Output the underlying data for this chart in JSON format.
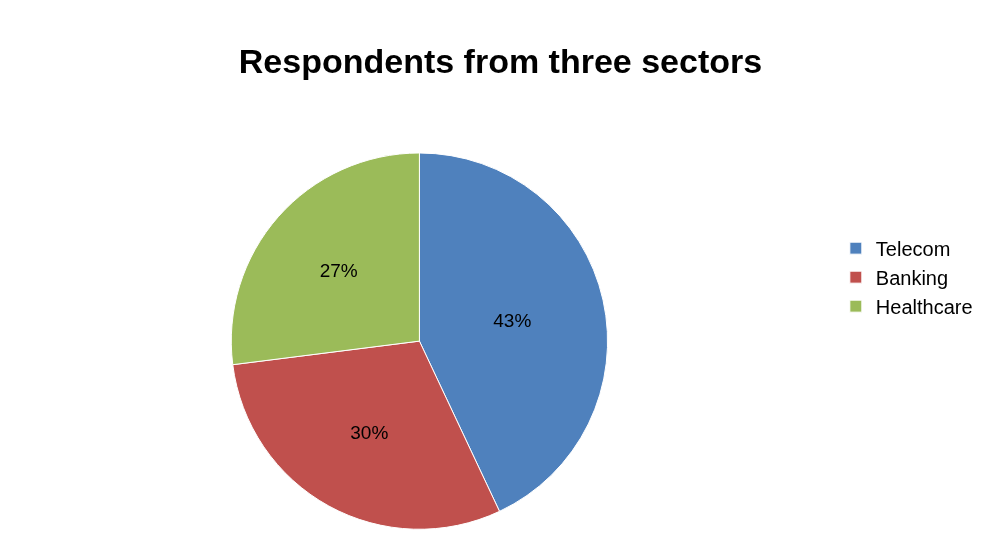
{
  "chart_data": {
    "type": "pie",
    "title": "Respondents from three sectors",
    "categories": [
      "Telecom",
      "Banking",
      "Healthcare"
    ],
    "values": [
      43,
      30,
      27
    ],
    "value_labels": [
      "43%",
      "30%",
      "27%"
    ],
    "colors": [
      "#4f81bd",
      "#c0504d",
      "#9bbb59"
    ],
    "legend": "right"
  }
}
